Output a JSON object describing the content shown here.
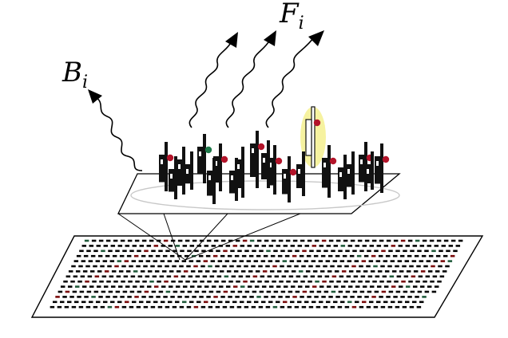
{
  "labels": {
    "background_main": "B",
    "background_sub": "i",
    "fluorescence_main": "F",
    "fluorescence_sub": "i"
  },
  "colors": {
    "ink": "#000000",
    "probe_dark": "#111111",
    "target_red": "#b3142a",
    "target_green": "#1f7a4a",
    "highlight_yellow": "#f6f2a0",
    "ellipse_gray": "#c8c8c8"
  },
  "array": {
    "rows": 14,
    "spot_colors": [
      "#000000",
      "#7a0a0a",
      "#1f5a3a"
    ]
  }
}
